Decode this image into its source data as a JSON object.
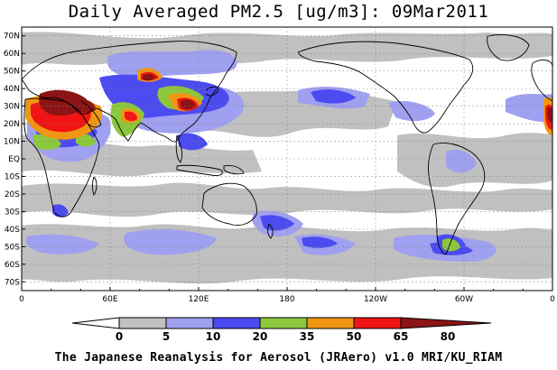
{
  "title": "Daily Averaged PM2.5 [ug/m3]: 09Mar2011",
  "footer": "The Japanese Reanalysis for Aerosol (JRAero) v1.0 MRI/KU_RIAM",
  "lat_ticks": [
    "70N",
    "60N",
    "50N",
    "40N",
    "30N",
    "20N",
    "10N",
    "EQ",
    "10S",
    "20S",
    "30S",
    "40S",
    "50S",
    "60S",
    "70S"
  ],
  "lon_ticks": [
    "0",
    "60E",
    "120E",
    "180",
    "120W",
    "60W",
    "0"
  ],
  "colorbar": {
    "labels": [
      "0",
      "5",
      "10",
      "20",
      "35",
      "50",
      "65",
      "80"
    ],
    "colors": [
      "#ffffff",
      "#c0c0c0",
      "#a0a0f0",
      "#4b4bf0",
      "#8cc83c",
      "#f09614",
      "#f01414",
      "#8c1414"
    ]
  },
  "map_colors": {
    "gray": "#c0c0c0",
    "lightblue": "#a0a0f0",
    "blue": "#4b4bf0",
    "green": "#8cc83c",
    "orange": "#f09614",
    "red": "#f01414",
    "darkred": "#8c1414",
    "coast": "#000000"
  }
}
